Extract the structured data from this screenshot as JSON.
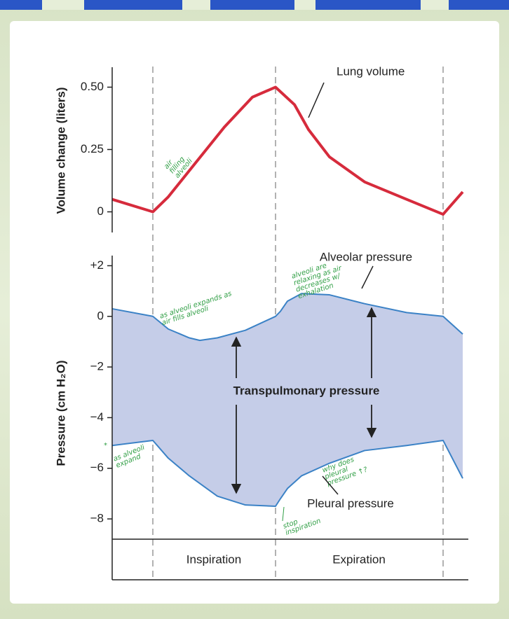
{
  "chart_data": [
    {
      "type": "line",
      "y_label": "Volume change (liters)",
      "x": [
        0,
        58,
        80,
        120,
        160,
        200,
        233,
        260,
        280,
        310,
        360,
        420,
        472,
        500
      ],
      "xlim": [
        0,
        510
      ],
      "phase_bounds": [
        58,
        233,
        472
      ],
      "series": [
        {
          "name": "Lung volume",
          "color": "#d62b3c",
          "values": [
            0.05,
            0.0,
            0.06,
            0.2,
            0.34,
            0.46,
            0.5,
            0.43,
            0.33,
            0.22,
            0.12,
            0.05,
            -0.01,
            0.08
          ]
        }
      ],
      "ylim": [
        -0.08,
        0.58
      ],
      "yticks": [
        {
          "value": 0.5,
          "label": "0.50"
        },
        0.25,
        0
      ],
      "annotations": [
        "air filling alveoli"
      ]
    },
    {
      "type": "line",
      "y_label": "Pressure (cm H₂O)",
      "x": [
        0,
        58,
        80,
        110,
        125,
        150,
        190,
        233,
        240,
        250,
        270,
        310,
        360,
        420,
        472,
        500
      ],
      "xlim": [
        0,
        510
      ],
      "fill_between": true,
      "fill_color": "#c5cde8",
      "fill_label": "Transpulmonary pressure",
      "phases": [
        "Inspiration",
        "Expiration"
      ],
      "series": [
        {
          "name": "Alveolar pressure",
          "color": "#3b82c6",
          "values": [
            0.3,
            0.0,
            -0.5,
            -0.85,
            -0.95,
            -0.85,
            -0.55,
            0.0,
            0.2,
            0.6,
            0.9,
            0.85,
            0.5,
            0.15,
            0.0,
            -0.7
          ]
        },
        {
          "name": "Pleural pressure",
          "color": "#3b82c6",
          "values": [
            -5.1,
            -4.9,
            -5.6,
            -6.3,
            -6.6,
            -7.1,
            -7.45,
            -7.5,
            -7.2,
            -6.8,
            -6.3,
            -5.8,
            -5.3,
            -5.1,
            -4.9,
            -6.4
          ]
        }
      ],
      "ylim": [
        -8.8,
        2.4
      ],
      "yticks": [
        {
          "value": 2,
          "label": "+2"
        },
        0,
        {
          "value": -2,
          "label": "−2"
        },
        {
          "value": -4,
          "label": "−4"
        },
        {
          "value": -6,
          "label": "−6"
        },
        {
          "value": -8,
          "label": "−8"
        }
      ],
      "annotations": [
        "as alveoli expands as air fills alveoli",
        "alveoli are relaxing as air decreases w/ exhalation",
        "*",
        "as alveoli expand",
        "why does pleural pressure ↑?",
        "stop inspiration"
      ]
    }
  ]
}
